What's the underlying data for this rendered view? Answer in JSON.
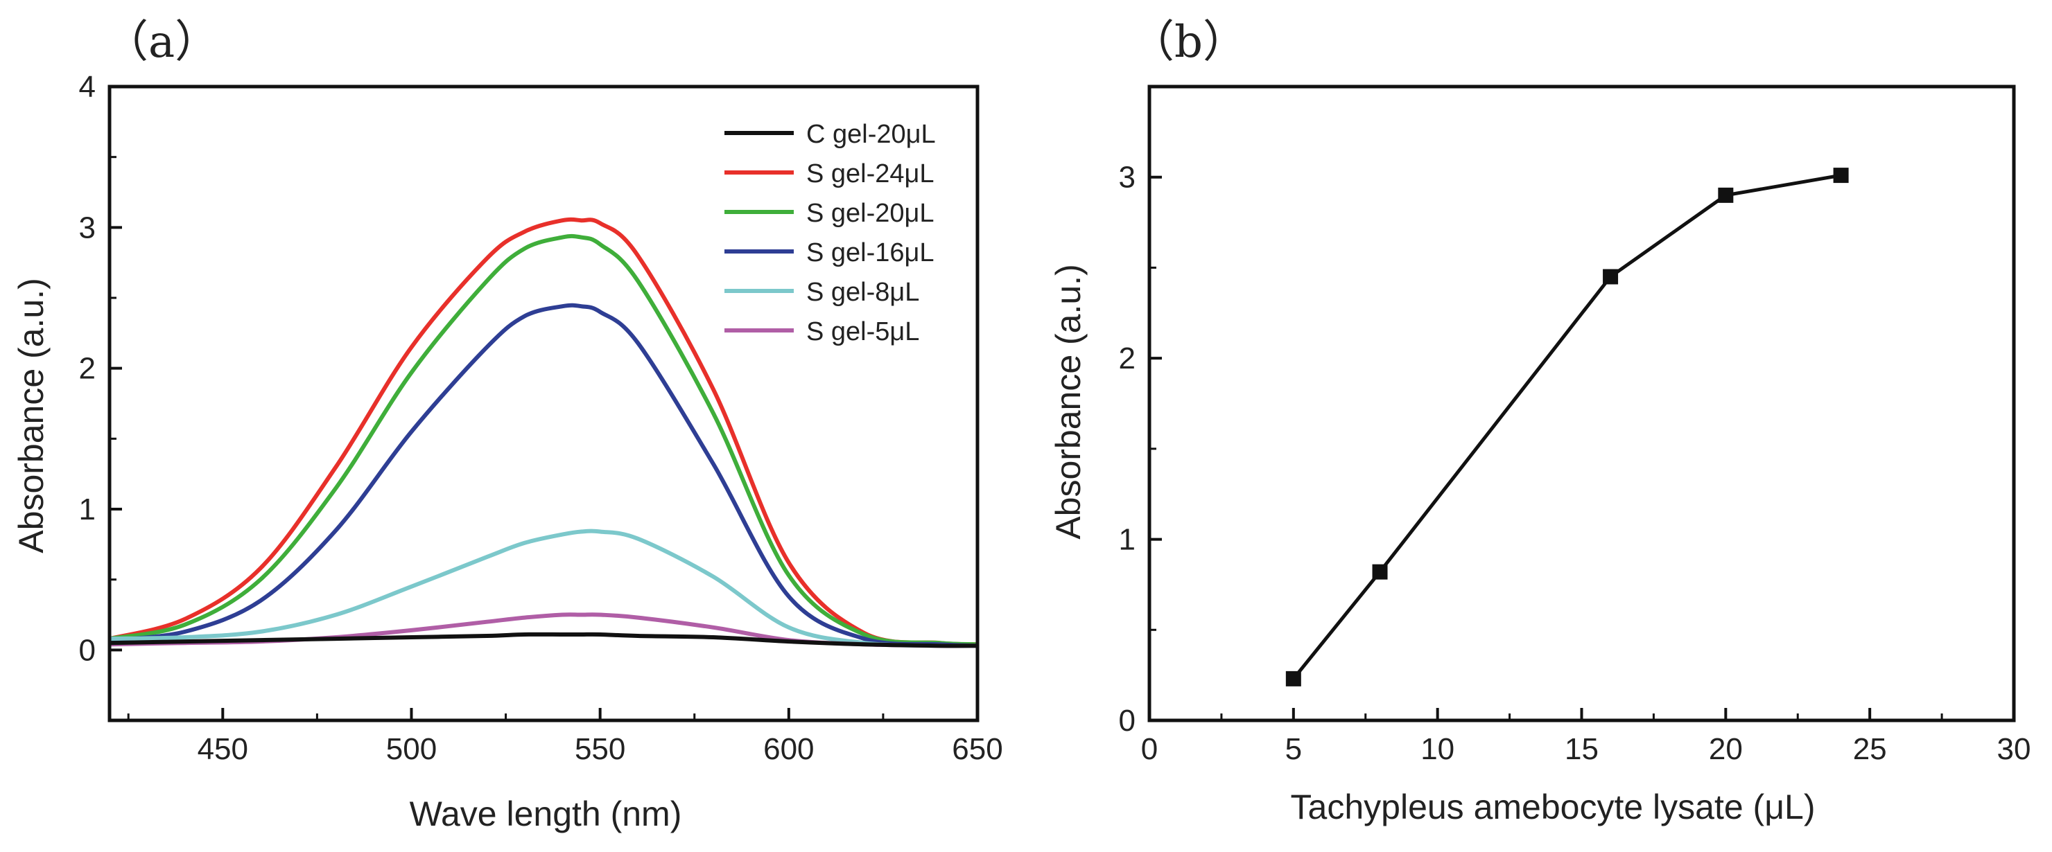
{
  "colors": {
    "axis": "#111111",
    "c_gel_20": "#111111",
    "s_gel_24": "#e8302a",
    "s_gel_20": "#3fae3a",
    "s_gel_16": "#2e3e94",
    "s_gel_8": "#7cc8cb",
    "s_gel_5": "#b05ea6",
    "marker": "#111111"
  },
  "chart_data": [
    {
      "panel_label": "（a）",
      "type": "line",
      "title": "",
      "xlabel": "Wave length (nm)",
      "ylabel": "Absorbance (a.u.)",
      "xlim": [
        420,
        650
      ],
      "ylim": [
        -0.5,
        4
      ],
      "xticks": [
        {
          "value": 450,
          "label": "450"
        },
        {
          "value": 500,
          "label": "500"
        },
        {
          "value": 550,
          "label": "550"
        },
        {
          "value": 600,
          "label": "600"
        },
        {
          "value": 650,
          "label": "650"
        }
      ],
      "yticks": [
        {
          "value": 0,
          "label": "0"
        },
        {
          "value": 1,
          "label": "1"
        },
        {
          "value": 2,
          "label": "2"
        },
        {
          "value": 3,
          "label": "3"
        },
        {
          "value": 4,
          "label": "4"
        }
      ],
      "legend_position": "top-right",
      "x": [
        420,
        440,
        460,
        480,
        500,
        520,
        530,
        540,
        545,
        550,
        560,
        580,
        600,
        620,
        640,
        650
      ],
      "series": [
        {
          "name": "C gel-20μL",
          "color_key": "c_gel_20",
          "values": [
            0.05,
            0.06,
            0.07,
            0.08,
            0.09,
            0.1,
            0.11,
            0.11,
            0.11,
            0.11,
            0.1,
            0.09,
            0.06,
            0.04,
            0.03,
            0.03
          ]
        },
        {
          "name": "S gel-24μL",
          "color_key": "s_gel_24",
          "values": [
            0.08,
            0.22,
            0.58,
            1.3,
            2.15,
            2.78,
            2.97,
            3.05,
            3.05,
            3.03,
            2.8,
            1.85,
            0.62,
            0.12,
            0.05,
            0.04
          ]
        },
        {
          "name": "S gel-20μL",
          "color_key": "s_gel_20",
          "values": [
            0.08,
            0.18,
            0.5,
            1.15,
            1.97,
            2.62,
            2.85,
            2.93,
            2.93,
            2.88,
            2.62,
            1.68,
            0.53,
            0.11,
            0.05,
            0.04
          ]
        },
        {
          "name": "S gel-16μL",
          "color_key": "s_gel_16",
          "values": [
            0.07,
            0.13,
            0.35,
            0.85,
            1.55,
            2.15,
            2.37,
            2.44,
            2.44,
            2.4,
            2.18,
            1.32,
            0.38,
            0.08,
            0.04,
            0.03
          ]
        },
        {
          "name": "S gel-8μL",
          "color_key": "s_gel_8",
          "values": [
            0.08,
            0.09,
            0.13,
            0.25,
            0.45,
            0.66,
            0.76,
            0.82,
            0.84,
            0.84,
            0.79,
            0.52,
            0.16,
            0.05,
            0.03,
            0.03
          ]
        },
        {
          "name": "S gel-5μL",
          "color_key": "s_gel_5",
          "values": [
            0.04,
            0.05,
            0.06,
            0.09,
            0.14,
            0.2,
            0.23,
            0.25,
            0.25,
            0.25,
            0.23,
            0.16,
            0.07,
            0.04,
            0.03,
            0.03
          ]
        }
      ]
    },
    {
      "panel_label": "（b）",
      "type": "line",
      "title": "",
      "xlabel": "Tachypleus amebocyte lysate (μL)",
      "ylabel": "Absorbance (a.u.)",
      "xlim": [
        0,
        30
      ],
      "ylim": [
        0,
        3.5
      ],
      "xticks": [
        {
          "value": 0,
          "label": "0"
        },
        {
          "value": 5,
          "label": "5"
        },
        {
          "value": 10,
          "label": "10"
        },
        {
          "value": 15,
          "label": "15"
        },
        {
          "value": 20,
          "label": "20"
        },
        {
          "value": 25,
          "label": "25"
        },
        {
          "value": 30,
          "label": "30"
        }
      ],
      "yticks": [
        {
          "value": 0,
          "label": "0"
        },
        {
          "value": 1,
          "label": "1"
        },
        {
          "value": 2,
          "label": "2"
        },
        {
          "value": 3,
          "label": "3"
        }
      ],
      "markers": "square",
      "x": [
        5,
        8,
        16,
        20,
        24
      ],
      "values": [
        0.23,
        0.82,
        2.45,
        2.9,
        3.01
      ]
    }
  ]
}
